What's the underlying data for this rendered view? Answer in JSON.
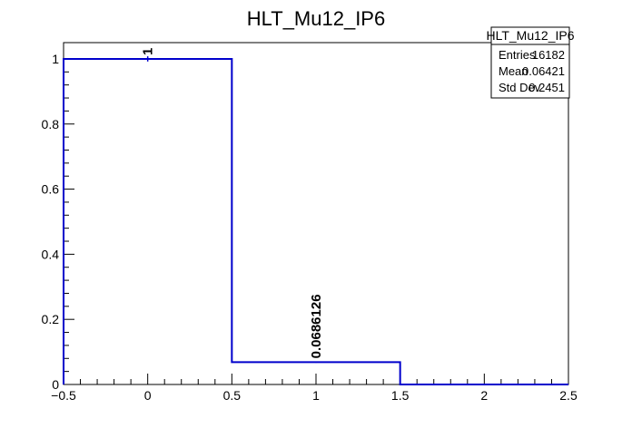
{
  "chart_data": {
    "type": "histogram",
    "title": "HLT_Mu12_IP6",
    "xlabel": "",
    "ylabel": "",
    "bins": [
      {
        "low": -0.5,
        "high": 0.5,
        "value": 1,
        "label": "1",
        "error": 0.008
      },
      {
        "low": 0.5,
        "high": 1.5,
        "value": 0.0686126,
        "label": "0.0686126",
        "error": 0.002
      },
      {
        "low": 1.5,
        "high": 2.5,
        "value": 0,
        "label": "",
        "error": 0
      }
    ],
    "xlim": [
      -0.5,
      2.5
    ],
    "ylim": [
      0,
      1.05
    ],
    "xticks": [
      -0.5,
      0,
      0.5,
      1,
      1.5,
      2,
      2.5
    ],
    "xtick_labels": [
      "−0.5",
      "0",
      "0.5",
      "1",
      "1.5",
      "2",
      "2.5"
    ],
    "yticks": [
      0,
      0.2,
      0.4,
      0.6,
      0.8,
      1
    ],
    "ytick_labels": [
      "0",
      "0.2",
      "0.4",
      "0.6",
      "0.8",
      "1"
    ],
    "line_color": "#0000cc",
    "grid": false,
    "stats_box": {
      "title": "HLT_Mu12_IP6",
      "rows": [
        {
          "label": "Entries",
          "value": "16182"
        },
        {
          "label": "Mean",
          "value": "0.06421"
        },
        {
          "label": "Std Dev",
          "value": "0.2451"
        }
      ],
      "placement": "top-right"
    }
  }
}
